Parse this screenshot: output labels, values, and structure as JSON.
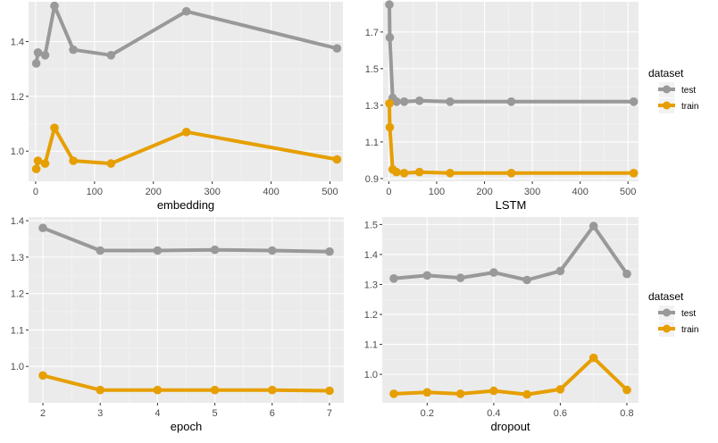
{
  "colors": {
    "panel_bg": "#ebebeb",
    "grid_major": "#ffffff",
    "grid_minor": "#f5f5f5",
    "test": "#999999",
    "train": "#e69f00"
  },
  "legend": {
    "title": "dataset",
    "entries": [
      {
        "key": "test",
        "label": "test"
      },
      {
        "key": "train",
        "label": "train"
      }
    ]
  },
  "chart_data": [
    {
      "type": "line",
      "xlabel": "embedding",
      "ylabel": "",
      "xlim": [
        -12,
        522
      ],
      "ylim": [
        0.89,
        1.545
      ],
      "xticks": [
        0,
        100,
        200,
        300,
        400,
        500
      ],
      "xtick_labels": [
        "0",
        "100",
        "200",
        "300",
        "400",
        "500"
      ],
      "yticks": [
        1.0,
        1.2,
        1.4
      ],
      "ytick_labels": [
        "1.0",
        "1.2",
        "1.4"
      ],
      "grid": true,
      "series": [
        {
          "name": "test",
          "x": [
            1,
            4,
            16,
            32,
            64,
            128,
            256,
            512
          ],
          "y": [
            1.32,
            1.36,
            1.35,
            1.53,
            1.37,
            1.35,
            1.51,
            1.375
          ]
        },
        {
          "name": "train",
          "x": [
            1,
            4,
            16,
            32,
            64,
            128,
            256,
            512
          ],
          "y": [
            0.935,
            0.965,
            0.955,
            1.085,
            0.965,
            0.955,
            1.07,
            0.97
          ]
        }
      ]
    },
    {
      "type": "line",
      "xlabel": "LSTM",
      "ylabel": "",
      "xlim": [
        -12,
        522
      ],
      "ylim": [
        0.885,
        1.865
      ],
      "xticks": [
        0,
        100,
        200,
        300,
        400,
        500
      ],
      "xtick_labels": [
        "0",
        "100",
        "200",
        "300",
        "400",
        "500"
      ],
      "yticks": [
        0.9,
        1.1,
        1.3,
        1.5,
        1.7
      ],
      "ytick_labels": [
        "0.9",
        "1.1",
        "1.3",
        "1.5",
        "1.7"
      ],
      "grid": true,
      "series": [
        {
          "name": "test",
          "x": [
            1,
            2,
            8,
            16,
            32,
            64,
            128,
            256,
            512
          ],
          "y": [
            1.85,
            1.67,
            1.34,
            1.32,
            1.32,
            1.325,
            1.32,
            1.32,
            1.32
          ]
        },
        {
          "name": "train",
          "x": [
            1,
            2,
            8,
            16,
            32,
            64,
            128,
            256,
            512
          ],
          "y": [
            1.31,
            1.18,
            0.95,
            0.935,
            0.93,
            0.935,
            0.93,
            0.93,
            0.93
          ]
        }
      ]
    },
    {
      "type": "line",
      "xlabel": "epoch",
      "ylabel": "",
      "xlim": [
        1.75,
        7.25
      ],
      "ylim": [
        0.9,
        1.41
      ],
      "xticks": [
        2,
        3,
        4,
        5,
        6,
        7
      ],
      "xtick_labels": [
        "2",
        "3",
        "4",
        "5",
        "6",
        "7"
      ],
      "yticks": [
        1.0,
        1.1,
        1.2,
        1.3,
        1.4
      ],
      "ytick_labels": [
        "1.0",
        "1.1",
        "1.2",
        "1.3",
        "1.4"
      ],
      "grid": true,
      "series": [
        {
          "name": "test",
          "x": [
            2,
            3,
            4,
            5,
            6,
            7
          ],
          "y": [
            1.38,
            1.318,
            1.318,
            1.32,
            1.318,
            1.315
          ]
        },
        {
          "name": "train",
          "x": [
            2,
            3,
            4,
            5,
            6,
            7
          ],
          "y": [
            0.975,
            0.935,
            0.935,
            0.935,
            0.935,
            0.933
          ]
        }
      ]
    },
    {
      "type": "line",
      "xlabel": "dropout",
      "ylabel": "",
      "xlim": [
        0.065,
        0.835
      ],
      "ylim": [
        0.905,
        1.525
      ],
      "xticks": [
        0.2,
        0.4,
        0.6,
        0.8
      ],
      "xtick_labels": [
        "0.2",
        "0.4",
        "0.6",
        "0.8"
      ],
      "yticks": [
        1.0,
        1.1,
        1.2,
        1.3,
        1.4,
        1.5
      ],
      "ytick_labels": [
        "1.0",
        "1.1",
        "1.2",
        "1.3",
        "1.4",
        "1.5"
      ],
      "grid": true,
      "series": [
        {
          "name": "test",
          "x": [
            0.1,
            0.2,
            0.3,
            0.4,
            0.5,
            0.6,
            0.7,
            0.8
          ],
          "y": [
            1.32,
            1.33,
            1.322,
            1.34,
            1.315,
            1.345,
            1.495,
            1.335
          ]
        },
        {
          "name": "train",
          "x": [
            0.1,
            0.2,
            0.3,
            0.4,
            0.5,
            0.6,
            0.7,
            0.8
          ],
          "y": [
            0.935,
            0.94,
            0.935,
            0.945,
            0.933,
            0.95,
            1.055,
            0.948
          ]
        }
      ]
    }
  ]
}
